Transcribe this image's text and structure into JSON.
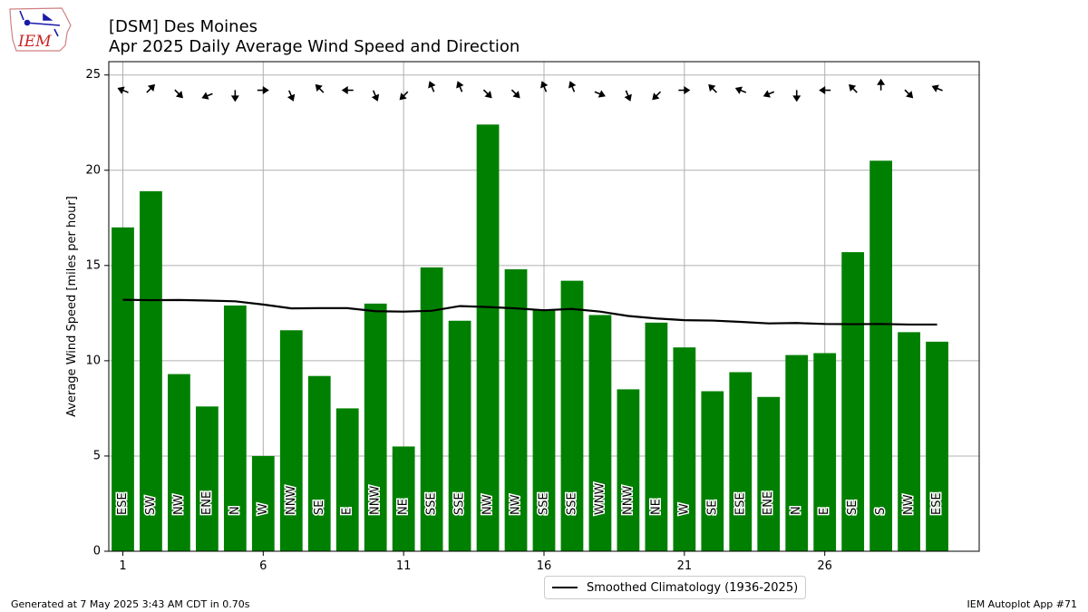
{
  "header": {
    "title_line1": "[DSM] Des Moines",
    "title_line2": "Apr 2025 Daily Average Wind Speed and Direction"
  },
  "logo": {
    "text": "IEM",
    "icon": "iowa-state-outline-icon"
  },
  "footer": {
    "generated": "Generated at 7 May 2025 3:43 AM CDT in 0.70s",
    "app": "IEM Autoplot App #71"
  },
  "legend": {
    "label": "Smoothed Climatology (1936-2025)"
  },
  "colors": {
    "bar": "#008000",
    "line": "#000000",
    "grid": "#b0b0b0"
  },
  "chart_data": {
    "type": "bar",
    "title": "[DSM] Des Moines\nApr 2025 Daily Average Wind Speed and Direction",
    "xlabel": "",
    "ylabel": "Average Wind Speed [miles per hour]",
    "xlim": [
      0.5,
      31.5
    ],
    "ylim": [
      0,
      25.7
    ],
    "xticks": [
      1,
      6,
      11,
      16,
      21,
      26
    ],
    "yticks": [
      0,
      5,
      10,
      15,
      20,
      25
    ],
    "grid": true,
    "legend_position": "bottom-center",
    "x": [
      1,
      2,
      3,
      4,
      5,
      6,
      7,
      8,
      9,
      10,
      11,
      12,
      13,
      14,
      15,
      16,
      17,
      18,
      19,
      20,
      21,
      22,
      23,
      24,
      25,
      26,
      27,
      28,
      29,
      30
    ],
    "values": [
      17.0,
      18.9,
      9.3,
      7.6,
      12.9,
      5.0,
      11.6,
      9.2,
      7.5,
      13.0,
      5.5,
      14.9,
      12.1,
      22.4,
      14.8,
      12.7,
      14.2,
      12.4,
      8.5,
      12.0,
      10.7,
      8.4,
      9.4,
      8.1,
      10.3,
      10.4,
      15.7,
      20.5,
      11.5,
      11.0
    ],
    "direction_labels": [
      "ESE",
      "SW",
      "NW",
      "ENE",
      "N",
      "W",
      "NNW",
      "SE",
      "E",
      "NNW",
      "NE",
      "SSE",
      "SSE",
      "NW",
      "NW",
      "SSE",
      "SSE",
      "WNW",
      "NNW",
      "NE",
      "W",
      "SE",
      "ESE",
      "ENE",
      "N",
      "E",
      "SE",
      "S",
      "NW",
      "ESE"
    ],
    "arrow_directions_deg": [
      112.5,
      225,
      315,
      67.5,
      0,
      270,
      337.5,
      135,
      90,
      337.5,
      45,
      157.5,
      157.5,
      315,
      315,
      157.5,
      157.5,
      292.5,
      337.5,
      45,
      270,
      135,
      112.5,
      67.5,
      0,
      90,
      135,
      180,
      315,
      112.5
    ],
    "series": [
      {
        "name": "Smoothed Climatology (1936-2025)",
        "type": "line",
        "x": [
          1,
          2,
          3,
          4,
          5,
          6,
          7,
          8,
          9,
          10,
          11,
          12,
          13,
          14,
          15,
          16,
          17,
          18,
          19,
          20,
          21,
          22,
          23,
          24,
          25,
          26,
          27,
          28,
          29,
          30
        ],
        "values": [
          13.2,
          13.18,
          13.19,
          13.16,
          13.12,
          12.95,
          12.75,
          12.76,
          12.76,
          12.6,
          12.58,
          12.62,
          12.87,
          12.82,
          12.75,
          12.65,
          12.72,
          12.58,
          12.35,
          12.22,
          12.13,
          12.11,
          12.04,
          11.96,
          11.98,
          11.93,
          11.92,
          11.93,
          11.9,
          11.9
        ]
      }
    ]
  }
}
